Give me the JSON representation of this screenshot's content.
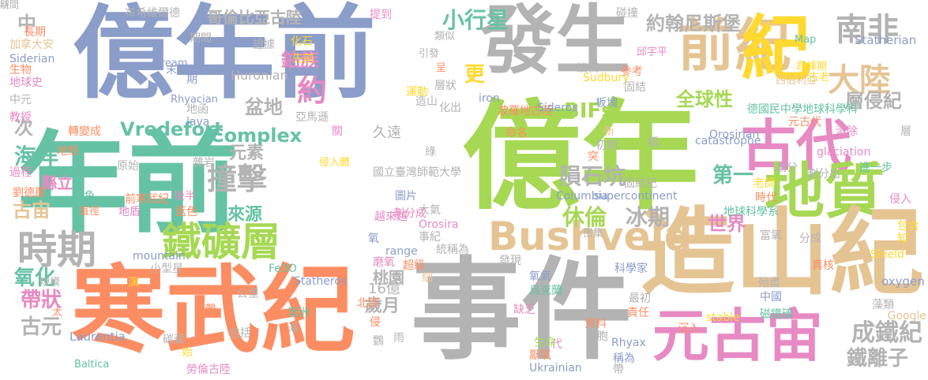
{
  "palette": {
    "blue": "#8b9dc9",
    "green": "#a6d854",
    "gray": "#b3b3b3",
    "teal": "#66c2a5",
    "orange": "#fc8d62",
    "pink": "#e78ac3",
    "yellow": "#ffd92f",
    "tan": "#e5c494"
  },
  "words": [
    {
      "text": "億年前",
      "color": "#8b9dc9"
    },
    {
      "text": "發生",
      "color": "#b3b3b3"
    },
    {
      "text": "前紀",
      "color": "#e5c494"
    },
    {
      "text": "紀",
      "color": "#ffd92f"
    },
    {
      "text": "南非",
      "color": "#b3b3b3"
    },
    {
      "text": "大陸",
      "color": "#e5c494"
    },
    {
      "text": "古代",
      "color": "#e78ac3"
    },
    {
      "text": "地質",
      "color": "#a6d854"
    },
    {
      "text": "年前",
      "color": "#66c2a5"
    },
    {
      "text": "億年",
      "color": "#a6d854"
    },
    {
      "text": "造山紀",
      "color": "#e5c494"
    },
    {
      "text": "元古宙",
      "color": "#e78ac3"
    },
    {
      "text": "寒武紀",
      "color": "#fc8d62"
    },
    {
      "text": "事件",
      "color": "#b3b3b3"
    },
    {
      "text": "Bushveld",
      "color": "#e5c494"
    },
    {
      "text": "鐵礦層",
      "color": "#a6d854"
    },
    {
      "text": "時期",
      "color": "#b3b3b3"
    },
    {
      "text": "撞擊",
      "color": "#b3b3b3"
    },
    {
      "text": "Vredefort",
      "color": "#66c2a5"
    },
    {
      "text": "Complex",
      "color": "#66c2a5"
    },
    {
      "text": "BIFs",
      "color": "#a6d854"
    },
    {
      "text": "全球性",
      "color": "#a6d854"
    },
    {
      "text": "隕石坑",
      "color": "#b3b3b3"
    },
    {
      "text": "休倫",
      "color": "#a6d854"
    },
    {
      "text": "冰期",
      "color": "#b3b3b3"
    },
    {
      "text": "第一",
      "color": "#66c2a5"
    },
    {
      "text": "世界",
      "color": "#e78ac3"
    },
    {
      "text": "成鐵紀",
      "color": "#b3b3b3"
    },
    {
      "text": "鐵離子",
      "color": "#b3b3b3"
    },
    {
      "text": "層侵紀",
      "color": "#b3b3b3"
    },
    {
      "text": "約翰尼斯堡",
      "color": "#b3b3b3"
    },
    {
      "text": "小行星",
      "color": "#66c2a5"
    },
    {
      "text": "哥倫比亞古陸",
      "color": "#b3b3b3"
    },
    {
      "text": "鉑族",
      "color": "#e78ac3"
    },
    {
      "text": "約",
      "color": "#e78ac3"
    },
    {
      "text": "盆地",
      "color": "#b3b3b3"
    },
    {
      "text": "更",
      "color": "#ffd92f"
    },
    {
      "text": "元素",
      "color": "#b3b3b3"
    },
    {
      "text": "來源",
      "color": "#66c2a5"
    },
    {
      "text": "海洋",
      "color": "#66c2a5"
    },
    {
      "text": "古宙",
      "color": "#e5c494"
    },
    {
      "text": "縣立",
      "color": "#e78ac3"
    },
    {
      "text": "氧化",
      "color": "#66c2a5"
    },
    {
      "text": "帶狀",
      "color": "#e78ac3"
    },
    {
      "text": "古元",
      "color": "#b3b3b3"
    },
    {
      "text": "次",
      "color": "#b3b3b3"
    },
    {
      "text": "中",
      "color": "#b3b3b3"
    },
    {
      "text": "歲月",
      "color": "#b3b3b3"
    },
    {
      "text": "桃園",
      "color": "#b3b3b3"
    },
    {
      "text": "16億",
      "color": "#b3b3b3"
    },
    {
      "text": "久遠",
      "color": "#b3b3b3"
    },
    {
      "text": "布希維爾德",
      "color": "#b3b3b3"
    },
    {
      "text": "提到",
      "color": "#e78ac3"
    },
    {
      "text": "碰撞",
      "color": "#b3b3b3"
    },
    {
      "text": "類似",
      "color": "#b3b3b3"
    },
    {
      "text": "長期",
      "color": "#fc8d62"
    },
    {
      "text": "期間",
      "color": "#b3b3b3"
    },
    {
      "text": "證據",
      "color": "#b3b3b3"
    },
    {
      "text": "化石",
      "color": "#ffd92f"
    },
    {
      "text": "先前",
      "color": "#ffd92f"
    },
    {
      "text": "加拿大安",
      "color": "#e5c494"
    },
    {
      "text": "Siderian",
      "color": "#8b9dc9"
    },
    {
      "text": "生物",
      "color": "#fc8d62"
    },
    {
      "text": "地球史",
      "color": "#e78ac3"
    },
    {
      "text": "中元",
      "color": "#b3b3b3"
    },
    {
      "text": "教授",
      "color": "#e78ac3"
    },
    {
      "text": "轉變成",
      "color": "#fc8d62"
    },
    {
      "text": "地殼",
      "color": "#fc8d62"
    },
    {
      "text": "過程",
      "color": "#e78ac3"
    },
    {
      "text": "劉德慶",
      "color": "#fc8d62"
    },
    {
      "text": "stream",
      "color": "#8b9dc9"
    },
    {
      "text": "末",
      "color": "#8b9dc9"
    },
    {
      "text": "期",
      "color": "#8b9dc9"
    },
    {
      "text": "Huronian",
      "color": "#b3b3b3"
    },
    {
      "text": "Rhyacian",
      "color": "#8b9dc9"
    },
    {
      "text": "地函",
      "color": "#b3b3b3"
    },
    {
      "text": "lava",
      "color": "#8b9dc9"
    },
    {
      "text": "Map",
      "color": "#66c2a5"
    },
    {
      "text": "Statherian",
      "color": "#8b9dc9"
    },
    {
      "text": "高峰期",
      "color": "#ffd92f"
    },
    {
      "text": "古老",
      "color": "#ffd92f"
    },
    {
      "text": "西伯利亞",
      "color": "#e5c494"
    },
    {
      "text": "邱宇平",
      "color": "#e78ac3"
    },
    {
      "text": "時",
      "color": "#ffd92f"
    },
    {
      "text": "Sudbury",
      "color": "#ffd92f"
    },
    {
      "text": "德國民中學地球科學科",
      "color": "#66c2a5"
    },
    {
      "text": "板塊",
      "color": "#8b9dc9"
    },
    {
      "text": "元古代",
      "color": "#fc8d62"
    },
    {
      "text": "Orosirian",
      "color": "#8b9dc9"
    },
    {
      "text": "清除",
      "color": "#e78ac3"
    },
    {
      "text": "層",
      "color": "#b3b3b3"
    },
    {
      "text": "glaciation",
      "color": "#e78ac3"
    },
    {
      "text": "catastrophe",
      "color": "#8b9dc9"
    },
    {
      "text": "進一步",
      "color": "#66c2a5"
    },
    {
      "text": "侵入",
      "color": "#e78ac3"
    },
    {
      "text": "時代",
      "color": "#fc8d62"
    },
    {
      "text": "地球科學系",
      "color": "#66c2a5"
    },
    {
      "text": "富氧",
      "color": "#b3b3b3"
    },
    {
      "text": "分成",
      "color": "#b3b3b3"
    },
    {
      "text": "包含",
      "color": "#ffd92f"
    },
    {
      "text": "知",
      "color": "#ffd92f"
    },
    {
      "text": "Shield",
      "color": "#ffd92f"
    },
    {
      "text": "真核",
      "color": "#fc8d62"
    },
    {
      "text": "oxygen",
      "color": "#8b9dc9"
    },
    {
      "text": "殆盡",
      "color": "#b3b3b3"
    },
    {
      "text": "中國",
      "color": "#8b9dc9"
    },
    {
      "text": "藻類",
      "color": "#b3b3b3"
    },
    {
      "text": "Google",
      "color": "#e5c494"
    },
    {
      "text": "磁鐵礦",
      "color": "#66c2a5"
    },
    {
      "text": "stable",
      "color": "#ffd92f"
    },
    {
      "text": "沉入",
      "color": "#fc8d62"
    },
    {
      "text": "Rhyax",
      "color": "#8b9dc9"
    },
    {
      "text": "責任",
      "color": "#fc8d62"
    },
    {
      "text": "最初",
      "color": "#b3b3b3"
    },
    {
      "text": "科學家",
      "color": "#8b9dc9"
    },
    {
      "text": "帶",
      "color": "#b3b3b3"
    },
    {
      "text": "稱為",
      "color": "#8b9dc9"
    },
    {
      "text": "細胞",
      "color": "#b3b3b3"
    },
    {
      "text": "資料",
      "color": "#fc8d62"
    },
    {
      "text": "烏克蘭",
      "color": "#66c2a5"
    },
    {
      "text": "氧氣",
      "color": "#8b9dc9"
    },
    {
      "text": "厭氧",
      "color": "#fc8d62"
    },
    {
      "text": "代",
      "color": "#e78ac3"
    },
    {
      "text": "生命",
      "color": "#a6d854"
    },
    {
      "text": "Ukrainian",
      "color": "#8b9dc9"
    },
    {
      "text": "缺乏",
      "color": "#e78ac3"
    },
    {
      "text": "細",
      "color": "#e5c494"
    },
    {
      "text": "超級",
      "color": "#fc8d62"
    },
    {
      "text": "磨氧",
      "color": "#e78ac3"
    },
    {
      "text": "發現",
      "color": "#b3b3b3"
    },
    {
      "text": "range",
      "color": "#8b9dc9"
    },
    {
      "text": "統稱為",
      "color": "#b3b3b3"
    },
    {
      "text": "事紀",
      "color": "#b3b3b3"
    },
    {
      "text": "Orosira",
      "color": "#e78ac3"
    },
    {
      "text": "劃分成",
      "color": "#e78ac3"
    },
    {
      "text": "大氣",
      "color": "#b3b3b3"
    },
    {
      "text": "圖片",
      "color": "#8b9dc9"
    },
    {
      "text": "越來越",
      "color": "#e78ac3"
    },
    {
      "text": "氧",
      "color": "#8b9dc9"
    },
    {
      "text": "侵",
      "color": "#fc8d62"
    },
    {
      "text": "雨",
      "color": "#b3b3b3"
    },
    {
      "text": "鸚",
      "color": "#b3b3b3"
    },
    {
      "text": "北部",
      "color": "#fc8d62"
    },
    {
      "text": "澳洲",
      "color": "#66c2a5"
    },
    {
      "text": "海",
      "color": "#b3b3b3"
    },
    {
      "text": "包括",
      "color": "#b3b3b3"
    },
    {
      "text": "勞倫古陸",
      "color": "#e78ac3"
    },
    {
      "text": "公里",
      "color": "#b3b3b3"
    },
    {
      "text": "Fe3O",
      "color": "#66c2a5"
    },
    {
      "text": "Statheros",
      "color": "#8b9dc9"
    },
    {
      "text": "小型星",
      "color": "#b3b3b3"
    },
    {
      "text": "演",
      "color": "#ffd92f"
    },
    {
      "text": "mountain",
      "color": "#8b9dc9"
    },
    {
      "text": "災難",
      "color": "#fc8d62"
    },
    {
      "text": "太",
      "color": "#fc8d62"
    },
    {
      "text": "規模",
      "color": "#b3b3b3"
    },
    {
      "text": "Laurentia",
      "color": "#8b9dc9"
    },
    {
      "text": "碳藏",
      "color": "#b3b3b3"
    },
    {
      "text": "始",
      "color": "#ffd92f"
    },
    {
      "text": "Baltica",
      "color": "#66c2a5"
    },
    {
      "text": "藍色",
      "color": "#fc8d62"
    },
    {
      "text": "地盾",
      "color": "#e78ac3"
    },
    {
      "text": "前寒武紀",
      "color": "#fc8d62"
    },
    {
      "text": "直徑",
      "color": "#fc8d62"
    },
    {
      "text": "綠色",
      "color": "#66c2a5"
    },
    {
      "text": "原始",
      "color": "#b3b3b3"
    },
    {
      "text": "雜岩",
      "color": "#b3b3b3"
    },
    {
      "text": "後半",
      "color": "#e78ac3"
    },
    {
      "text": "密集",
      "color": "#b3b3b3"
    },
    {
      "text": "侵入體",
      "color": "#ffd92f"
    },
    {
      "text": "Columbia",
      "color": "#8b9dc9"
    },
    {
      "text": "supercontinent",
      "color": "#8b9dc9"
    },
    {
      "text": "固結紀",
      "color": "#b3b3b3"
    },
    {
      "text": "老師",
      "color": "#ffd92f"
    },
    {
      "text": "劃分",
      "color": "#b3b3b3"
    },
    {
      "text": "劃分出",
      "color": "#b3b3b3"
    },
    {
      "text": "鐵",
      "color": "#b3b3b3"
    },
    {
      "text": "突",
      "color": "#fc8d62"
    },
    {
      "text": "初期",
      "color": "#b3b3b3"
    },
    {
      "text": "命名",
      "color": "#fc8d62"
    },
    {
      "text": "新",
      "color": "#e5c494"
    },
    {
      "text": "國立臺灣師範大學",
      "color": "#b3b3b3"
    },
    {
      "text": "綠",
      "color": "#b3b3b3"
    },
    {
      "text": "關",
      "color": "#e78ac3"
    },
    {
      "text": "亞馬遜",
      "color": "#b3b3b3"
    },
    {
      "text": "iron",
      "color": "#8b9dc9"
    },
    {
      "text": "波羅地古陸",
      "color": "#fc8d62"
    },
    {
      "text": "Sideros",
      "color": "#8b9dc9"
    },
    {
      "text": "化出",
      "color": "#b3b3b3"
    },
    {
      "text": "造山",
      "color": "#b3b3b3"
    },
    {
      "text": "層狀",
      "color": "#b3b3b3"
    },
    {
      "text": "運動",
      "color": "#ffd92f"
    },
    {
      "text": "引發",
      "color": "#b3b3b3"
    },
    {
      "text": "呈",
      "color": "#fc8d62"
    },
    {
      "text": "編輯",
      "color": "#b3b3b3"
    },
    {
      "text": "參考",
      "color": "#fc8d62"
    },
    {
      "text": "固結",
      "color": "#b3b3b3"
    },
    {
      "text": "時間",
      "color": "#b3b3b3"
    },
    {
      "text": "狀",
      "color": "#b3b3b3"
    }
  ]
}
